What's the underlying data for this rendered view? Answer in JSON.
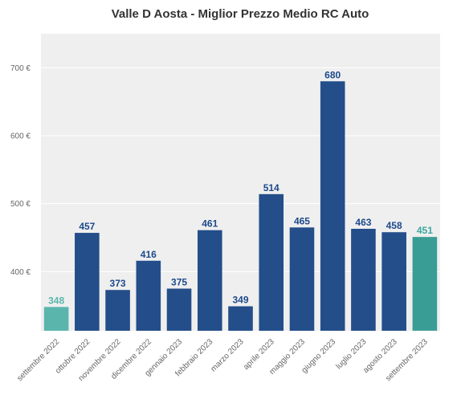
{
  "chart_data": {
    "type": "bar",
    "title": "Valle D Aosta - Miglior Prezzo Medio RC Auto",
    "xlabel": "",
    "ylabel": "",
    "y_unit": "€",
    "ylim": [
      313,
      750
    ],
    "yticks": [
      400,
      500,
      600,
      700
    ],
    "ytick_labels": [
      "400 €",
      "500 €",
      "600 €",
      "700 €"
    ],
    "grid": true,
    "categories": [
      "settembre 2022",
      "ottobre 2022",
      "novembre 2022",
      "dicembre 2022",
      "gennaio 2023",
      "febbraio 2023",
      "marzo 2023",
      "aprile 2023",
      "maggio 2023",
      "giugno 2023",
      "luglio 2023",
      "agosto 2023",
      "settembre 2023"
    ],
    "values": [
      348,
      457,
      373,
      416,
      375,
      461,
      349,
      514,
      465,
      680,
      463,
      458,
      451
    ],
    "value_labels": [
      "348",
      "457",
      "373",
      "416",
      "375",
      "461",
      "349",
      "514",
      "465",
      "680",
      "463",
      "458",
      "451"
    ],
    "bar_colors": [
      "#5ab5ad",
      "#234e8a",
      "#234e8a",
      "#234e8a",
      "#234e8a",
      "#234e8a",
      "#234e8a",
      "#234e8a",
      "#234e8a",
      "#234e8a",
      "#234e8a",
      "#234e8a",
      "#3a9d95"
    ],
    "label_colors": [
      "#5ab5ad",
      "#1d4a8c",
      "#1d4a8c",
      "#1d4a8c",
      "#1d4a8c",
      "#1d4a8c",
      "#1d4a8c",
      "#1d4a8c",
      "#1d4a8c",
      "#1d4a8c",
      "#1d4a8c",
      "#1d4a8c",
      "#3aa79e"
    ],
    "plot_background": "#efefef",
    "grid_color": "#ffffff"
  }
}
